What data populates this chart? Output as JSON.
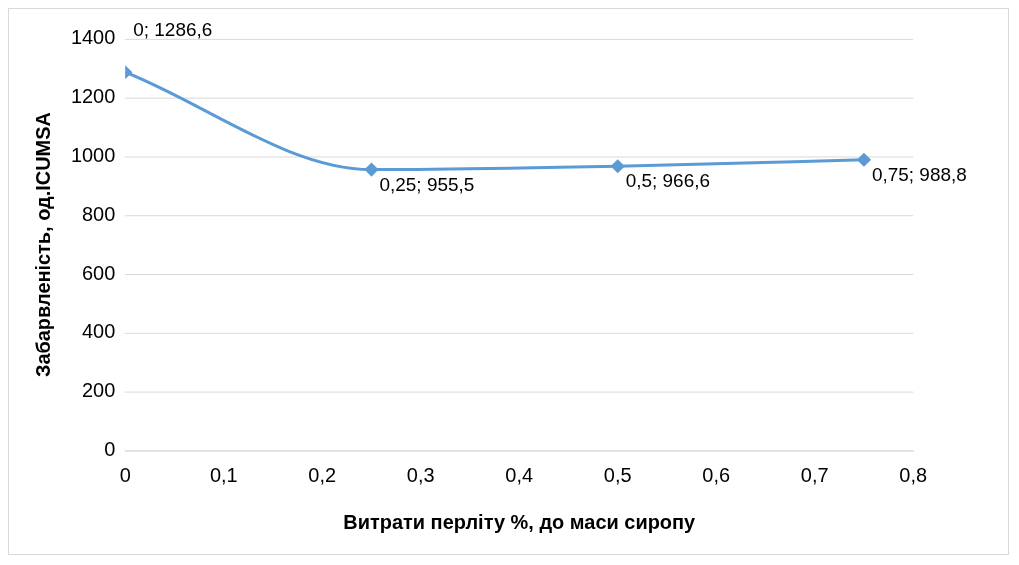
{
  "chart_data": {
    "type": "line",
    "xlabel": "Витрати перліту %, до маси сиропу",
    "ylabel": "Забарвленість, од.ICUMSA",
    "x": [
      0,
      0.25,
      0.5,
      0.75
    ],
    "series": [
      {
        "color": "#5b9bd5",
        "values": [
          1286.6,
          955.5,
          966.6,
          988.8
        ],
        "value_labels": [
          "0; 1286,6",
          "0,25; 955,5",
          "0,5; 966,6",
          "0,75; 988,8"
        ]
      }
    ],
    "xlim": [
      0,
      0.8
    ],
    "xticks": [
      0,
      {
        "value": 0.1,
        "label": "0,1"
      },
      {
        "value": 0.2,
        "label": "0,2"
      },
      {
        "value": 0.3,
        "label": "0,3"
      },
      {
        "value": 0.4,
        "label": "0,4"
      },
      {
        "value": 0.5,
        "label": "0,5"
      },
      {
        "value": 0.6,
        "label": "0,6"
      },
      {
        "value": 0.7,
        "label": "0,7"
      },
      {
        "value": 0.8,
        "label": "0,8"
      }
    ],
    "ylim": [
      0,
      1400
    ],
    "yticks": [
      0,
      200,
      400,
      600,
      800,
      1000,
      1200,
      1400
    ],
    "grid": "y",
    "legend": false,
    "marker": "diamond",
    "line_style": "solid"
  }
}
